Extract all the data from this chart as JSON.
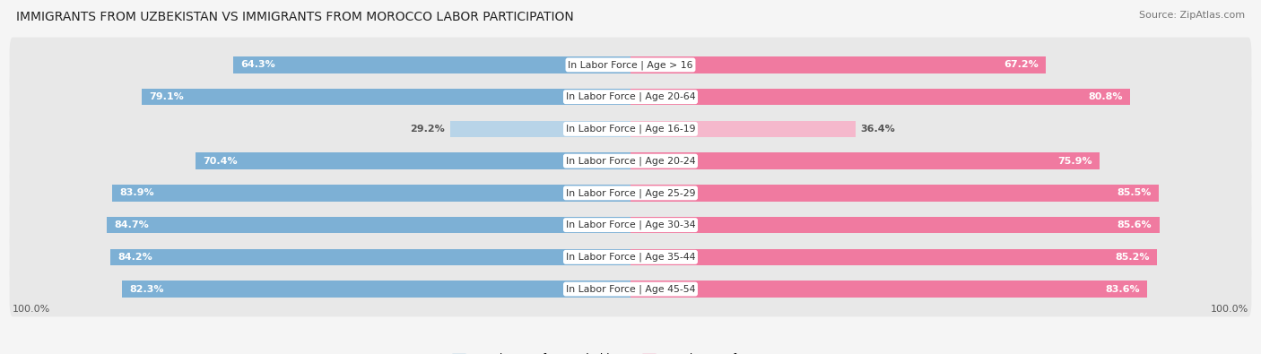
{
  "title": "IMMIGRANTS FROM UZBEKISTAN VS IMMIGRANTS FROM MOROCCO LABOR PARTICIPATION",
  "source": "Source: ZipAtlas.com",
  "categories": [
    "In Labor Force | Age > 16",
    "In Labor Force | Age 20-64",
    "In Labor Force | Age 16-19",
    "In Labor Force | Age 20-24",
    "In Labor Force | Age 25-29",
    "In Labor Force | Age 30-34",
    "In Labor Force | Age 35-44",
    "In Labor Force | Age 45-54"
  ],
  "uzbekistan_values": [
    64.3,
    79.1,
    29.2,
    70.4,
    83.9,
    84.7,
    84.2,
    82.3
  ],
  "morocco_values": [
    67.2,
    80.8,
    36.4,
    75.9,
    85.5,
    85.6,
    85.2,
    83.6
  ],
  "uzbekistan_color": "#7db0d5",
  "uzbekistan_color_light": "#b8d4e8",
  "morocco_color": "#f07aa0",
  "morocco_color_light": "#f5b8cc",
  "bg_color": "#f5f5f5",
  "row_bg_color": "#e8e8e8",
  "row_bg_alt": "#efefef",
  "white": "#ffffff",
  "legend_uzbekistan": "Immigrants from Uzbekistan",
  "legend_morocco": "Immigrants from Morocco",
  "max_val": 100.0,
  "light_row_index": 2
}
